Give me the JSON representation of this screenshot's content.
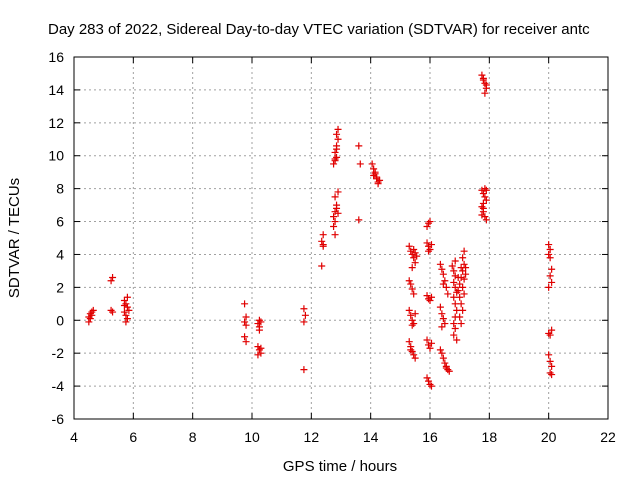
{
  "chart_data": {
    "type": "scatter",
    "title": "Day 283 of 2022, Sidereal Day-to-day VTEC variation (SDTVAR) for receiver antc",
    "xlabel": "GPS time / hours",
    "ylabel": "SDTVAR / TECUs",
    "xlim": [
      4,
      22
    ],
    "ylim": [
      -6,
      16
    ],
    "xticks": [
      "4",
      "6",
      "8",
      "10",
      "12",
      "14",
      "16",
      "18",
      "20",
      "22"
    ],
    "yticks": [
      "-6",
      "-4",
      "-2",
      "0",
      "2",
      "4",
      "6",
      "8",
      "10",
      "12",
      "14",
      "16"
    ],
    "grid": true,
    "marker": "+",
    "color": "#e00000",
    "series": [
      {
        "name": "SDTVAR",
        "points": [
          [
            4.5,
            -0.1
          ],
          [
            4.5,
            0.2
          ],
          [
            4.55,
            0.4
          ],
          [
            4.6,
            0.5
          ],
          [
            4.65,
            0.6
          ],
          [
            4.55,
            0.1
          ],
          [
            4.6,
            0.3
          ],
          [
            5.25,
            2.4
          ],
          [
            5.3,
            2.6
          ],
          [
            5.25,
            0.6
          ],
          [
            5.3,
            0.5
          ],
          [
            5.7,
            1.2
          ],
          [
            5.75,
            1.0
          ],
          [
            5.8,
            0.8
          ],
          [
            5.7,
            0.5
          ],
          [
            5.75,
            0.3
          ],
          [
            5.8,
            0.1
          ],
          [
            5.75,
            -0.1
          ],
          [
            5.8,
            1.4
          ],
          [
            5.85,
            0.6
          ],
          [
            5.7,
            0.9
          ],
          [
            9.75,
            1.0
          ],
          [
            9.8,
            0.2
          ],
          [
            9.75,
            -0.1
          ],
          [
            9.8,
            -0.3
          ],
          [
            9.75,
            -1.0
          ],
          [
            9.8,
            -1.3
          ],
          [
            10.2,
            -0.2
          ],
          [
            10.25,
            -0.4
          ],
          [
            10.3,
            -0.1
          ],
          [
            10.25,
            -0.6
          ],
          [
            10.2,
            -1.6
          ],
          [
            10.25,
            -1.8
          ],
          [
            10.3,
            -2.0
          ],
          [
            10.2,
            -2.1
          ],
          [
            10.3,
            -1.7
          ],
          [
            10.25,
            0.0
          ],
          [
            11.75,
            0.7
          ],
          [
            11.8,
            0.3
          ],
          [
            11.75,
            -0.1
          ],
          [
            11.75,
            -3.0
          ],
          [
            12.35,
            3.3
          ],
          [
            12.4,
            4.5
          ],
          [
            12.35,
            4.8
          ],
          [
            12.4,
            5.2
          ],
          [
            12.4,
            4.6
          ],
          [
            12.75,
            5.7
          ],
          [
            12.8,
            6.0
          ],
          [
            12.75,
            6.3
          ],
          [
            12.8,
            6.6
          ],
          [
            12.85,
            7.0
          ],
          [
            12.8,
            7.5
          ],
          [
            12.9,
            7.8
          ],
          [
            12.85,
            6.8
          ],
          [
            12.9,
            6.5
          ],
          [
            12.8,
            5.2
          ],
          [
            12.75,
            9.5
          ],
          [
            12.8,
            9.7
          ],
          [
            12.85,
            9.9
          ],
          [
            12.8,
            10.2
          ],
          [
            12.85,
            10.6
          ],
          [
            12.9,
            11.0
          ],
          [
            12.85,
            11.3
          ],
          [
            12.9,
            11.6
          ],
          [
            12.8,
            9.8
          ],
          [
            12.85,
            10.4
          ],
          [
            13.6,
            10.6
          ],
          [
            13.65,
            9.5
          ],
          [
            13.6,
            6.1
          ],
          [
            14.05,
            9.5
          ],
          [
            14.1,
            9.2
          ],
          [
            14.15,
            8.9
          ],
          [
            14.2,
            8.6
          ],
          [
            14.25,
            8.4
          ],
          [
            14.2,
            8.7
          ],
          [
            14.15,
            9.0
          ],
          [
            14.1,
            8.8
          ],
          [
            14.3,
            8.5
          ],
          [
            14.25,
            8.3
          ],
          [
            15.3,
            4.5
          ],
          [
            15.35,
            4.2
          ],
          [
            15.4,
            4.0
          ],
          [
            15.45,
            3.8
          ],
          [
            15.5,
            3.5
          ],
          [
            15.4,
            3.2
          ],
          [
            15.3,
            2.4
          ],
          [
            15.35,
            2.2
          ],
          [
            15.4,
            1.9
          ],
          [
            15.45,
            1.6
          ],
          [
            15.3,
            0.6
          ],
          [
            15.35,
            0.3
          ],
          [
            15.4,
            0.0
          ],
          [
            15.45,
            -0.2
          ],
          [
            15.5,
            0.4
          ],
          [
            15.4,
            -0.3
          ],
          [
            15.3,
            -1.3
          ],
          [
            15.35,
            -1.6
          ],
          [
            15.4,
            -1.9
          ],
          [
            15.45,
            -2.1
          ],
          [
            15.5,
            -2.3
          ],
          [
            15.35,
            -1.8
          ],
          [
            15.45,
            4.3
          ],
          [
            15.5,
            4.1
          ],
          [
            15.55,
            3.9
          ],
          [
            15.9,
            5.7
          ],
          [
            15.95,
            5.9
          ],
          [
            16.0,
            6.0
          ],
          [
            15.9,
            4.7
          ],
          [
            15.95,
            4.5
          ],
          [
            16.0,
            4.3
          ],
          [
            16.05,
            4.6
          ],
          [
            15.95,
            4.2
          ],
          [
            15.9,
            1.5
          ],
          [
            15.95,
            1.3
          ],
          [
            16.0,
            1.2
          ],
          [
            16.05,
            1.4
          ],
          [
            15.9,
            -1.2
          ],
          [
            15.95,
            -1.5
          ],
          [
            16.0,
            -1.7
          ],
          [
            16.05,
            -1.4
          ],
          [
            15.9,
            -3.5
          ],
          [
            15.95,
            -3.7
          ],
          [
            16.0,
            -3.9
          ],
          [
            16.05,
            -4.0
          ],
          [
            16.35,
            3.4
          ],
          [
            16.4,
            3.1
          ],
          [
            16.45,
            2.8
          ],
          [
            16.5,
            2.4
          ],
          [
            16.55,
            2.0
          ],
          [
            16.6,
            1.6
          ],
          [
            16.45,
            2.2
          ],
          [
            16.35,
            0.8
          ],
          [
            16.4,
            0.4
          ],
          [
            16.45,
            0.1
          ],
          [
            16.5,
            -0.2
          ],
          [
            16.4,
            -0.4
          ],
          [
            16.35,
            -1.8
          ],
          [
            16.4,
            -2.0
          ],
          [
            16.45,
            -2.3
          ],
          [
            16.5,
            -2.6
          ],
          [
            16.55,
            -2.8
          ],
          [
            16.6,
            -3.0
          ],
          [
            16.65,
            -3.1
          ],
          [
            16.55,
            -2.9
          ],
          [
            16.75,
            3.3
          ],
          [
            16.8,
            3.0
          ],
          [
            16.85,
            2.7
          ],
          [
            16.8,
            2.3
          ],
          [
            16.85,
            2.0
          ],
          [
            16.9,
            1.7
          ],
          [
            16.8,
            1.4
          ],
          [
            16.85,
            1.0
          ],
          [
            16.9,
            0.6
          ],
          [
            16.85,
            0.2
          ],
          [
            16.8,
            -0.2
          ],
          [
            16.85,
            -0.5
          ],
          [
            16.8,
            -0.9
          ],
          [
            16.9,
            -1.2
          ],
          [
            16.85,
            3.6
          ],
          [
            16.95,
            1.8
          ],
          [
            17.0,
            2.2
          ],
          [
            17.05,
            2.6
          ],
          [
            17.1,
            3.0
          ],
          [
            17.15,
            3.4
          ],
          [
            17.1,
            3.8
          ],
          [
            17.15,
            4.2
          ],
          [
            17.0,
            1.4
          ],
          [
            17.05,
            1.0
          ],
          [
            17.1,
            0.6
          ],
          [
            17.0,
            0.2
          ],
          [
            17.05,
            -0.2
          ],
          [
            17.1,
            2.0
          ],
          [
            17.15,
            2.5
          ],
          [
            17.2,
            3.2
          ],
          [
            17.15,
            1.6
          ],
          [
            17.2,
            2.8
          ],
          [
            16.95,
            2.6
          ],
          [
            17.05,
            3.2
          ],
          [
            17.75,
            14.9
          ],
          [
            17.8,
            14.7
          ],
          [
            17.85,
            14.4
          ],
          [
            17.9,
            14.1
          ],
          [
            17.85,
            13.8
          ],
          [
            17.8,
            14.6
          ],
          [
            17.9,
            14.3
          ],
          [
            17.75,
            7.9
          ],
          [
            17.8,
            7.7
          ],
          [
            17.85,
            7.5
          ],
          [
            17.9,
            7.3
          ],
          [
            17.8,
            7.1
          ],
          [
            17.85,
            8.0
          ],
          [
            17.9,
            7.9
          ],
          [
            17.75,
            6.9
          ],
          [
            17.8,
            6.6
          ],
          [
            17.85,
            6.3
          ],
          [
            17.9,
            6.1
          ],
          [
            17.75,
            6.4
          ],
          [
            17.8,
            6.8
          ],
          [
            20.0,
            4.6
          ],
          [
            20.05,
            4.3
          ],
          [
            20.0,
            4.0
          ],
          [
            20.05,
            3.8
          ],
          [
            20.1,
            3.1
          ],
          [
            20.05,
            2.7
          ],
          [
            20.1,
            2.3
          ],
          [
            20.0,
            2.0
          ],
          [
            20.0,
            -0.8
          ],
          [
            20.05,
            -0.9
          ],
          [
            20.1,
            -0.6
          ],
          [
            20.0,
            -2.1
          ],
          [
            20.05,
            -2.5
          ],
          [
            20.1,
            -2.8
          ],
          [
            20.05,
            -3.2
          ],
          [
            20.1,
            -3.3
          ]
        ]
      }
    ]
  }
}
